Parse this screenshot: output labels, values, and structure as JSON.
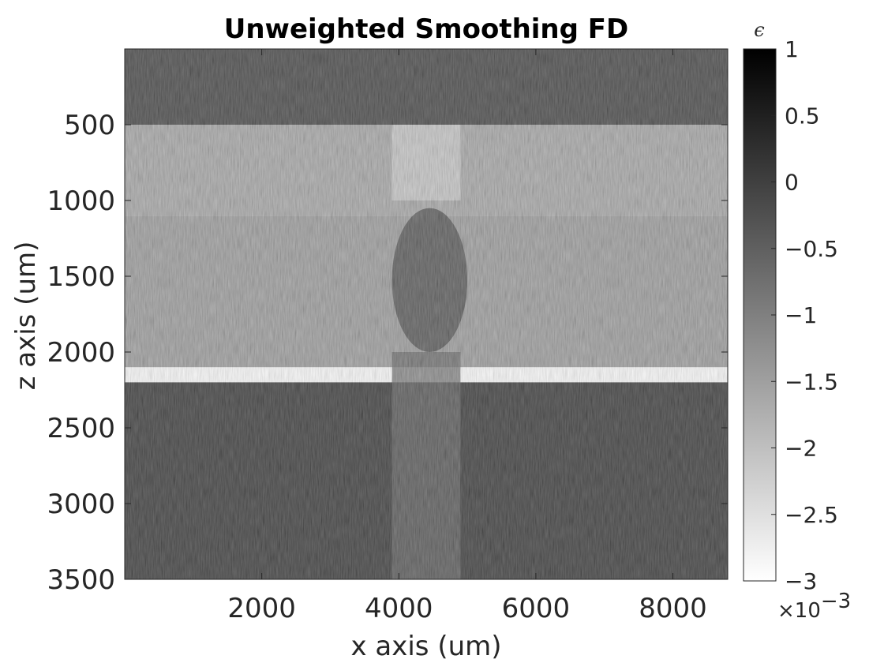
{
  "chart_data": {
    "type": "heatmap",
    "title": "Unweighted Smoothing FD",
    "xlabel": "x axis (um)",
    "ylabel": "z axis (um)",
    "xlim": [
      0,
      8800
    ],
    "ylim": [
      0,
      3500
    ],
    "y_reversed": true,
    "xticks": [
      2000,
      4000,
      6000,
      8000
    ],
    "yticks": [
      500,
      1000,
      1500,
      2000,
      2500,
      3000,
      3500
    ],
    "colormap": "gray",
    "colorbar": {
      "title": "ϵ",
      "ticks": [
        1,
        0.5,
        0,
        -0.5,
        -1,
        -1.5,
        -2,
        -2.5,
        -3
      ],
      "tick_labels": [
        "1",
        "0.5",
        "0",
        "−0.5",
        "−1",
        "−1.5",
        "−2",
        "−2.5",
        "−3"
      ],
      "range": [
        -3,
        1
      ],
      "exponent_label": "×10",
      "exponent": "−3",
      "low_color": "#ffffff",
      "high_color": "#000000"
    },
    "regions": [
      {
        "label": "top band",
        "z": [
          0,
          500
        ],
        "x": [
          0,
          8800
        ],
        "value": 0.2
      },
      {
        "label": "light band",
        "z": [
          500,
          1100
        ],
        "x": [
          0,
          8800
        ],
        "value": -1.5
      },
      {
        "label": "light column",
        "z": [
          500,
          1000
        ],
        "x": [
          3900,
          4900
        ],
        "value": -2.2
      },
      {
        "label": "mid layer",
        "z": [
          1100,
          2100
        ],
        "x": [
          0,
          8800
        ],
        "value": -1.3
      },
      {
        "label": "dark inclusion",
        "z": [
          1050,
          2000
        ],
        "x": [
          3900,
          5000
        ],
        "value": 0.0
      },
      {
        "label": "lower dark band",
        "z": [
          2200,
          3500
        ],
        "x": [
          0,
          8800
        ],
        "value": 0.4
      },
      {
        "label": "noisy column",
        "z": [
          2000,
          3500
        ],
        "x": [
          3900,
          4900
        ],
        "value": -0.3
      }
    ]
  }
}
